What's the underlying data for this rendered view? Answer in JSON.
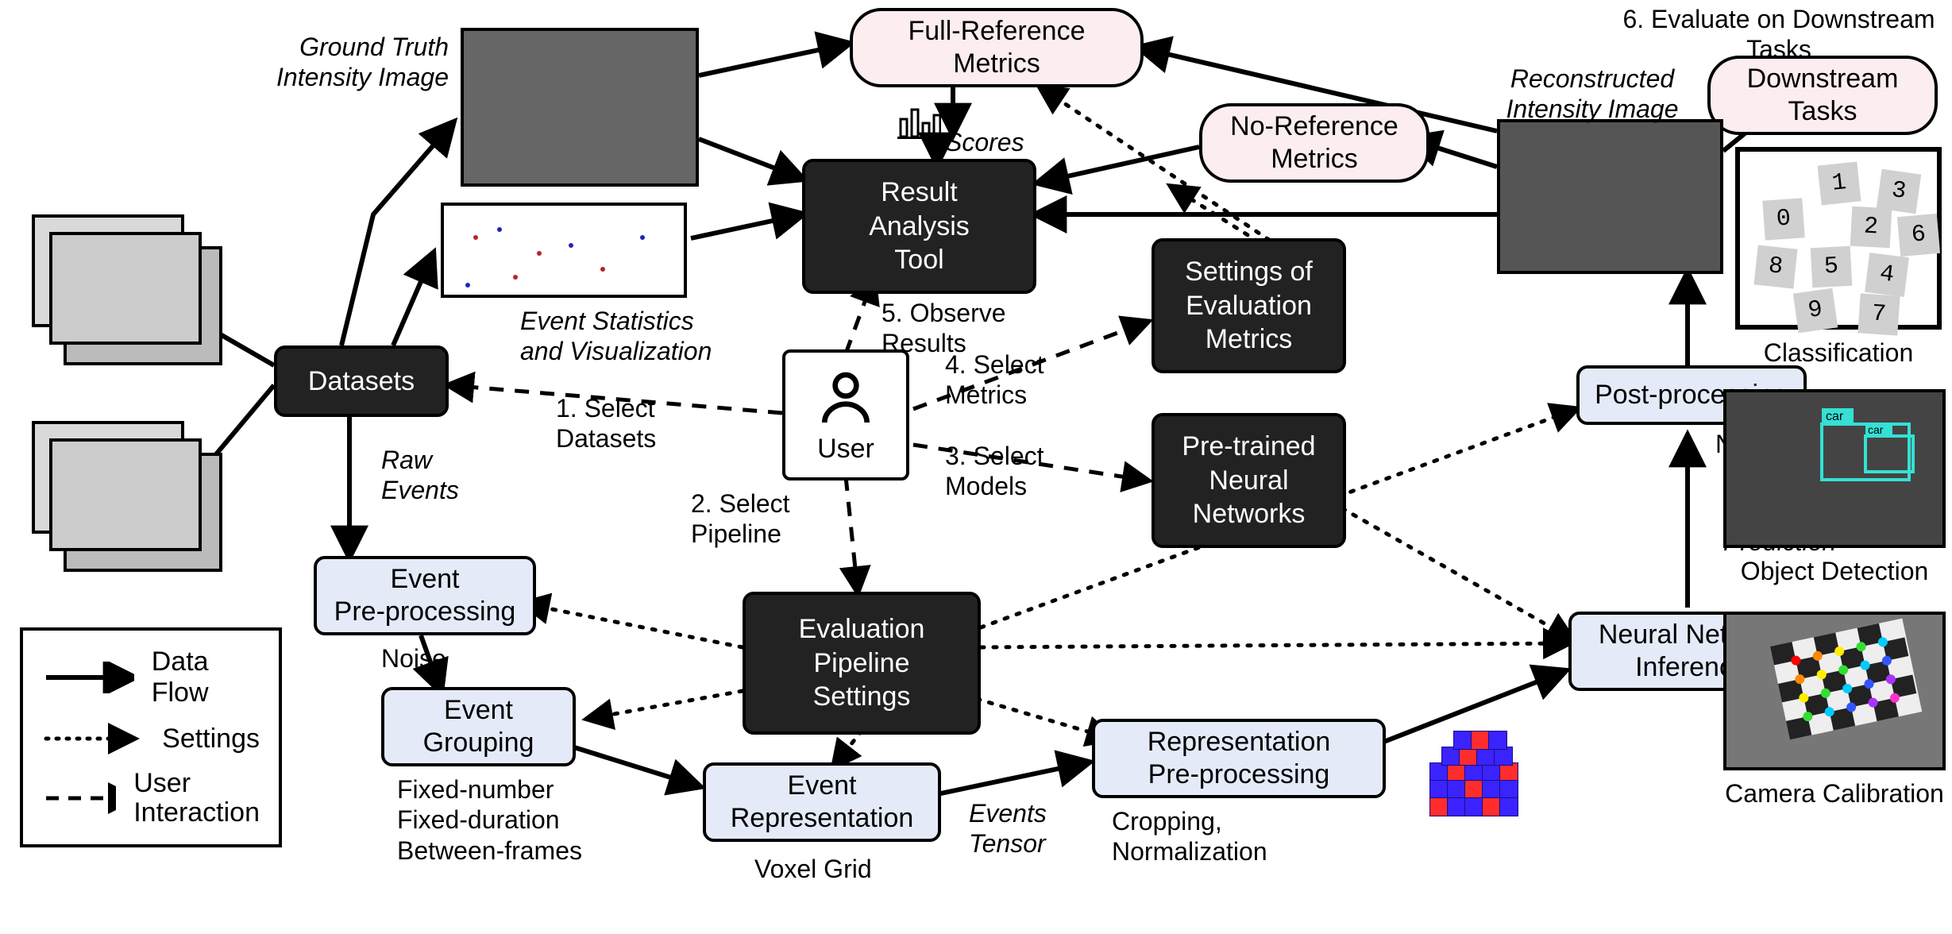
{
  "nodes": {
    "full_reference_metrics": "Full-Reference\nMetrics",
    "no_reference_metrics": "No-Reference\nMetrics",
    "downstream_tasks": "Downstream\nTasks",
    "result_analysis_tool": "Result\nAnalysis\nTool",
    "settings_eval_metrics": "Settings of\nEvaluation\nMetrics",
    "pretrained_nn": "Pre-trained\nNeural\nNetworks",
    "datasets": "Datasets",
    "evaluation_pipeline_settings": "Evaluation\nPipeline\nSettings",
    "event_preprocessing": "Event\nPre-processing",
    "event_grouping": "Event\nGrouping",
    "event_representation": "Event\nRepresentation",
    "representation_preprocessing": "Representation\nPre-processing",
    "neural_network_inference": "Neural Network\nInference",
    "post_processing": "Post-processing",
    "user": "User"
  },
  "labels": {
    "gt_intensity_image": "Ground Truth\nIntensity Image",
    "event_stats_viz": "Event Statistics\nand Visualization",
    "raw_events": "Raw\nEvents",
    "noise": "Noise",
    "fixed_lines": "Fixed-number\nFixed-duration\nBetween-frames",
    "voxel_grid": "Voxel Grid",
    "events_tensor": "Events\nTensor",
    "crop_norm": "Cropping,\nNormalization",
    "normalization": "Normalization",
    "network_prediction": "Network\nPrediction",
    "reconstructed_intensity_image": "Reconstructed\nIntensity Image",
    "scores": "Scores",
    "evaluate_downstream": "6. Evaluate on Downstream\nTasks",
    "classification": "Classification",
    "object_detection": "Object  Detection",
    "camera_calibration": "Camera Calibration",
    "step1": "1. Select\nDatasets",
    "step2": "2. Select\nPipeline",
    "step3": "3. Select\nModels",
    "step4": "4. Select\nMetrics",
    "step5": "5. Observe\nResults"
  },
  "legend": {
    "data_flow": "Data Flow",
    "settings": "Settings",
    "user_interaction": "User\nInteraction"
  },
  "colors": {
    "dark_box_bg": "#222222",
    "light_box_bg": "#e5eaf9",
    "pill_bg": "#fceeee",
    "voxel_blue": "#3a23ff",
    "voxel_red": "#ff2d2d",
    "detect_box": "#35e0d4"
  },
  "edges": {
    "solid": [
      "datasets->gt_image",
      "gt_image->full_ref",
      "gt_image->result_analysis",
      "datasets->event_viz",
      "event_viz->result_analysis",
      "scores->result_analysis",
      "full_ref->scores",
      "reconstructed->full_ref",
      "reconstructed->no_ref",
      "reconstructed->result_analysis",
      "reconstructed->downstream_tasks",
      "datasets->event_preprocessing",
      "event_preprocessing->event_grouping",
      "event_grouping->event_representation",
      "event_representation->representation_preprocessing",
      "representation_preprocessing->nn_inference",
      "nn_inference->post_processing",
      "post_processing->reconstructed"
    ],
    "dotted_settings": [
      "settings_eval_metrics->full_ref",
      "settings_eval_metrics->no_ref",
      "pretrained_nn->nn_inference",
      "eval_pipeline->event_preprocessing",
      "eval_pipeline->event_grouping",
      "eval_pipeline->event_representation",
      "eval_pipeline->representation_preprocessing",
      "eval_pipeline->post_processing"
    ],
    "dashed_user": [
      "user->datasets",
      "user->eval_pipeline",
      "user->pretrained_nn",
      "user->settings_eval_metrics",
      "user->result_analysis"
    ]
  }
}
